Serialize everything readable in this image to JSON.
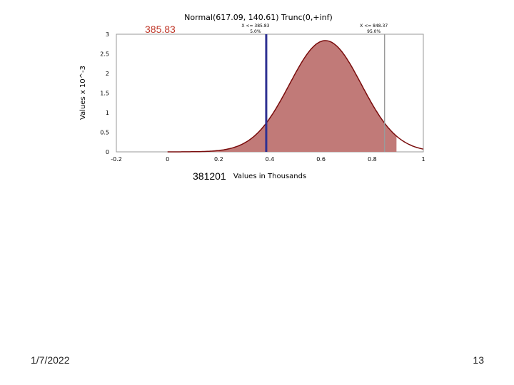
{
  "slide": {
    "date": "1/7/2022",
    "page_number": "13",
    "selected_value": "385.83",
    "sample_label": "381201"
  },
  "chart_data": {
    "type": "area",
    "title": "Normal(617.09, 140.61) Trunc(0,+inf)",
    "xlabel": "Values in Thousands",
    "ylabel": "Values x 10^-3",
    "xlim": [
      -0.2,
      1
    ],
    "ylim": [
      0,
      3
    ],
    "x_ticks": [
      "-0.2",
      "0",
      "0.2",
      "0.4",
      "0.6",
      "0.8",
      "1"
    ],
    "y_ticks": [
      "0",
      "0.5",
      "1",
      "1.5",
      "2",
      "2.5",
      "3"
    ],
    "distribution": {
      "mean": 0.61709,
      "sd": 0.14061
    },
    "shaded_range": [
      0,
      0.895
    ],
    "markers": [
      {
        "name": "left",
        "x": 0.38583,
        "label": "X <= 385.83",
        "sublabel": "5.0%",
        "color": "#2e3192"
      },
      {
        "name": "right",
        "x": 0.84837,
        "label": "X <= 848.37",
        "sublabel": "95.0%",
        "color": "#9a9a9a"
      }
    ],
    "colors": {
      "fill": "#c17a78",
      "curve": "#7a0d0d"
    }
  }
}
